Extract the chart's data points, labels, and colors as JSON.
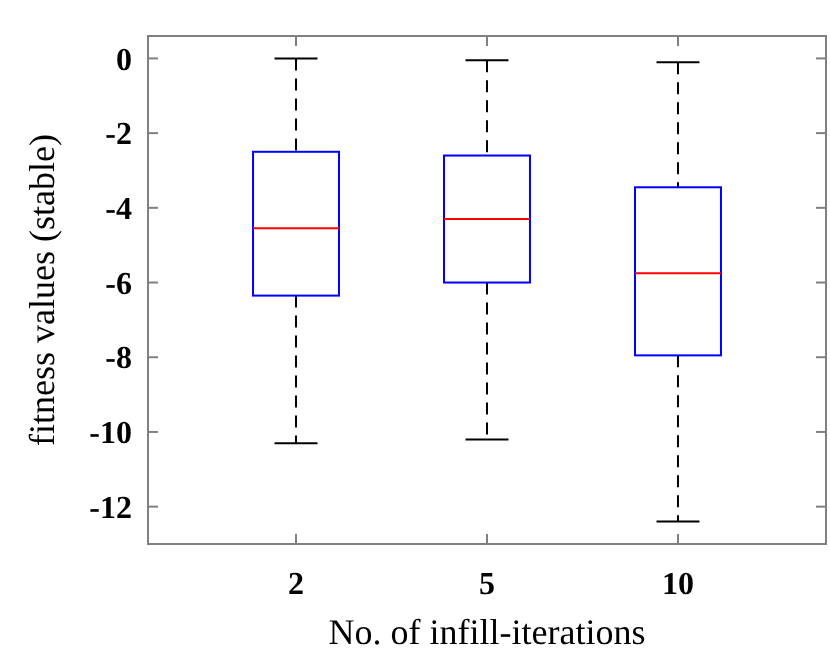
{
  "chart_data": {
    "type": "box",
    "xlabel": "No. of infill-iterations",
    "ylabel": "fitness values (stable)",
    "categories": [
      "2",
      "5",
      "10"
    ],
    "boxes": [
      {
        "low": -10.3,
        "q1": -6.35,
        "median": -4.55,
        "q3": -2.5,
        "high": 0
      },
      {
        "low": -10.2,
        "q1": -6.0,
        "median": -4.3,
        "q3": -2.6,
        "high": -0.05
      },
      {
        "low": -12.4,
        "q1": -7.95,
        "median": -5.75,
        "q3": -3.45,
        "high": -0.1
      }
    ],
    "color": "#0000ff",
    "ylim": [
      -13,
      0.6
    ],
    "yticks": [
      0,
      -2,
      -4,
      -6,
      -8,
      -10,
      -12
    ],
    "grid": false
  }
}
